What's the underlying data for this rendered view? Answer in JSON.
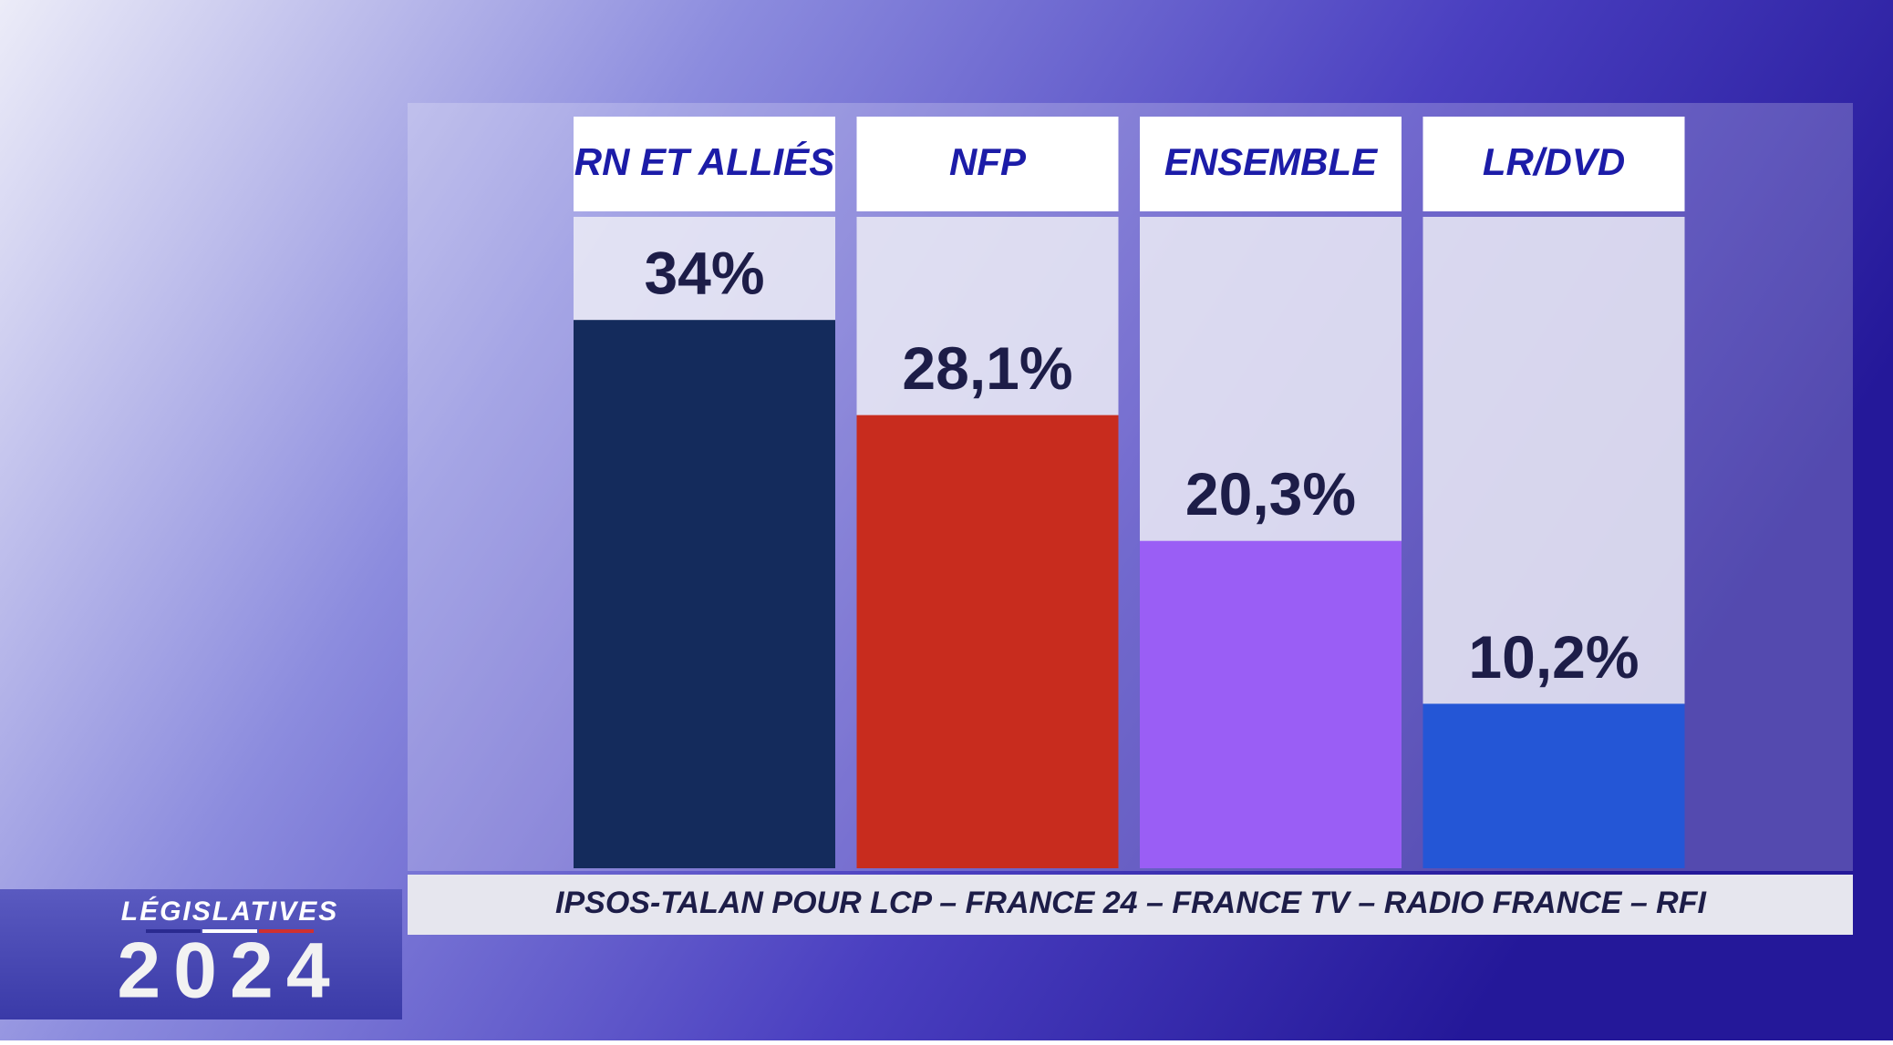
{
  "chart_data": {
    "type": "bar",
    "categories": [
      "RN ET ALLIÉS",
      "NFP",
      "ENSEMBLE",
      "LR/DVD"
    ],
    "values": [
      34,
      28.1,
      20.3,
      10.2
    ],
    "value_labels": [
      "34%",
      "28,1%",
      "20,3%",
      "10,2%"
    ],
    "colors": [
      "#142b5c",
      "#c82c1e",
      "#9a5ef5",
      "#2456d6"
    ],
    "source": "IPSOS-TALAN POUR LCP – FRANCE 24 – FRANCE TV – RADIO FRANCE – RFI"
  },
  "branding": {
    "title": "LÉGISLATIVES",
    "year": "2024"
  }
}
